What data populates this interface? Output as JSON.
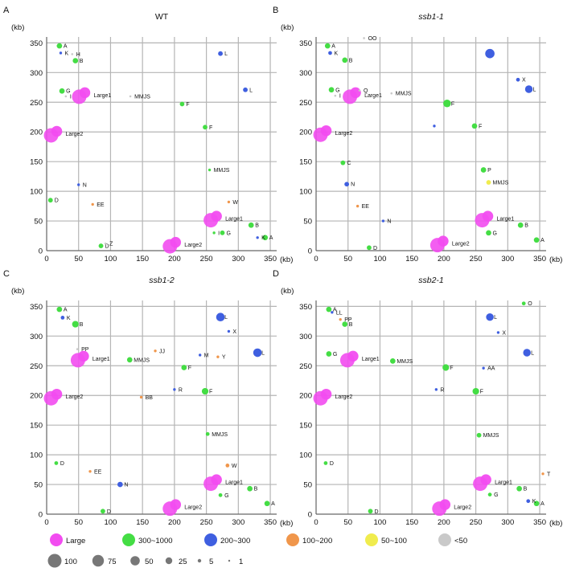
{
  "legend": {
    "color_items": [
      {
        "label": "Large",
        "color": "#f24cf0"
      },
      {
        "label": "300~1000",
        "color": "#44dd44"
      },
      {
        "label": "200~300",
        "color": "#3f5fe0"
      },
      {
        "label": "100~200",
        "color": "#f0964b"
      },
      {
        "label": "50~100",
        "color": "#f0ec4e"
      },
      {
        "label": "<50",
        "color": "#c9c9c9"
      }
    ],
    "size_items": [
      {
        "label": "100",
        "value": 100
      },
      {
        "label": "75",
        "value": 75
      },
      {
        "label": "50",
        "value": 50
      },
      {
        "label": "25",
        "value": 25
      },
      {
        "label": "5",
        "value": 5
      },
      {
        "label": "1",
        "value": 1
      }
    ],
    "size_color": "#777777"
  },
  "chart_data": [
    {
      "type": "scatter",
      "panel": "A",
      "title": "WT",
      "italic": false,
      "xlabel": "(kb)",
      "ylabel": "(kb)",
      "xlim": [
        0,
        360
      ],
      "ylim": [
        0,
        360
      ],
      "xticks": [
        0,
        50,
        100,
        150,
        200,
        250,
        300,
        350
      ],
      "yticks": [
        0,
        50,
        100,
        150,
        200,
        250,
        300,
        350
      ],
      "grid": true,
      "points": [
        {
          "x": 20,
          "y": 345,
          "cat": "300~1000",
          "size": 20,
          "label": "A"
        },
        {
          "x": 40,
          "y": 331,
          "cat": "<50",
          "size": 3,
          "label": "H"
        },
        {
          "x": 22,
          "y": 333,
          "cat": "200~300",
          "size": 5,
          "label": "K"
        },
        {
          "x": 45,
          "y": 320,
          "cat": "300~1000",
          "size": 20,
          "label": "B"
        },
        {
          "x": 272,
          "y": 332,
          "cat": "200~300",
          "size": 15,
          "label": "L"
        },
        {
          "x": 24,
          "y": 269,
          "cat": "300~1000",
          "size": 20,
          "label": "G"
        },
        {
          "x": 30,
          "y": 260,
          "cat": "<50",
          "size": 3,
          "label": "I"
        },
        {
          "x": 56,
          "y": 262,
          "cat": "Large",
          "size": 100,
          "label": "Large1"
        },
        {
          "x": 131,
          "y": 260,
          "cat": "<50",
          "size": 3,
          "label": "MMJS"
        },
        {
          "x": 311,
          "y": 271,
          "cat": "200~300",
          "size": 15,
          "label": "L"
        },
        {
          "x": 212,
          "y": 247,
          "cat": "300~1000",
          "size": 15,
          "label": "F"
        },
        {
          "x": 248,
          "y": 208,
          "cat": "300~1000",
          "size": 15,
          "label": "F"
        },
        {
          "x": 12,
          "y": 197,
          "cat": "Large",
          "size": 100,
          "label": "Large2"
        },
        {
          "x": 255,
          "y": 136,
          "cat": "300~1000",
          "size": 5,
          "label": "MMJS"
        },
        {
          "x": 50,
          "y": 111,
          "cat": "200~300",
          "size": 5,
          "label": "N"
        },
        {
          "x": 6,
          "y": 85,
          "cat": "300~1000",
          "size": 15,
          "label": "D"
        },
        {
          "x": 72,
          "y": 78,
          "cat": "100~200",
          "size": 5,
          "label": "EE"
        },
        {
          "x": 285,
          "y": 82,
          "cat": "100~200",
          "size": 5,
          "label": "W"
        },
        {
          "x": 262,
          "y": 54,
          "cat": "Large",
          "size": 100,
          "label": "Large1"
        },
        {
          "x": 320,
          "y": 43,
          "cat": "300~1000",
          "size": 20,
          "label": "B"
        },
        {
          "x": 262,
          "y": 30,
          "cat": "300~1000",
          "size": 5,
          "label": "I"
        },
        {
          "x": 275,
          "y": 30,
          "cat": "300~1000",
          "size": 15,
          "label": "G"
        },
        {
          "x": 342,
          "y": 22,
          "cat": "300~1000",
          "size": 20,
          "label": "A"
        },
        {
          "x": 198,
          "y": 10,
          "cat": "Large",
          "size": 100,
          "label": "Large2"
        },
        {
          "x": 85,
          "y": 8,
          "cat": "300~1000",
          "size": 15,
          "label": "D"
        },
        {
          "x": 92,
          "y": 12,
          "cat": "<50",
          "size": 3,
          "label": "Z"
        },
        {
          "x": 330,
          "y": 22,
          "cat": "200~300",
          "size": 5,
          "label": "K"
        }
      ]
    },
    {
      "type": "scatter",
      "panel": "B",
      "title": "ssb1-1",
      "italic": true,
      "xlabel": "(kb)",
      "ylabel": "(kb)",
      "xlim": [
        0,
        360
      ],
      "ylim": [
        0,
        360
      ],
      "xticks": [
        0,
        50,
        100,
        150,
        200,
        250,
        300,
        350
      ],
      "yticks": [
        0,
        50,
        100,
        150,
        200,
        250,
        300,
        350
      ],
      "grid": true,
      "points": [
        {
          "x": 18,
          "y": 345,
          "cat": "300~1000",
          "size": 20,
          "label": "A"
        },
        {
          "x": 75,
          "y": 358,
          "cat": "<50",
          "size": 3,
          "label": "OO"
        },
        {
          "x": 22,
          "y": 333,
          "cat": "200~300",
          "size": 10,
          "label": "K"
        },
        {
          "x": 45,
          "y": 321,
          "cat": "300~1000",
          "size": 20,
          "label": "B"
        },
        {
          "x": 272,
          "y": 332,
          "cat": "200~300",
          "size": 60,
          "label": ""
        },
        {
          "x": 316,
          "y": 288,
          "cat": "200~300",
          "size": 10,
          "label": "X"
        },
        {
          "x": 333,
          "y": 272,
          "cat": "200~300",
          "size": 40,
          "label": "L"
        },
        {
          "x": 24,
          "y": 271,
          "cat": "300~1000",
          "size": 20,
          "label": "G"
        },
        {
          "x": 30,
          "y": 261,
          "cat": "<50",
          "size": 3,
          "label": "I"
        },
        {
          "x": 58,
          "y": 262,
          "cat": "Large",
          "size": 100,
          "label": "Large1"
        },
        {
          "x": 68,
          "y": 270,
          "cat": "<50",
          "size": 3,
          "label": "Q"
        },
        {
          "x": 118,
          "y": 265,
          "cat": "<50",
          "size": 3,
          "label": "MMJS"
        },
        {
          "x": 205,
          "y": 248,
          "cat": "300~1000",
          "size": 40,
          "label": "F"
        },
        {
          "x": 248,
          "y": 210,
          "cat": "300~1000",
          "size": 20,
          "label": "F"
        },
        {
          "x": 185,
          "y": 210,
          "cat": "200~300",
          "size": 5,
          "label": ""
        },
        {
          "x": 12,
          "y": 198,
          "cat": "Large",
          "size": 100,
          "label": "Large2"
        },
        {
          "x": 42,
          "y": 148,
          "cat": "300~1000",
          "size": 15,
          "label": "C"
        },
        {
          "x": 262,
          "y": 136,
          "cat": "300~1000",
          "size": 20,
          "label": "P"
        },
        {
          "x": 270,
          "y": 115,
          "cat": "50~100",
          "size": 15,
          "label": "MMJS"
        },
        {
          "x": 48,
          "y": 112,
          "cat": "200~300",
          "size": 15,
          "label": "N"
        },
        {
          "x": 65,
          "y": 75,
          "cat": "100~200",
          "size": 5,
          "label": "EE"
        },
        {
          "x": 265,
          "y": 54,
          "cat": "Large",
          "size": 100,
          "label": "Large1"
        },
        {
          "x": 320,
          "y": 43,
          "cat": "300~1000",
          "size": 20,
          "label": "B"
        },
        {
          "x": 270,
          "y": 30,
          "cat": "300~1000",
          "size": 20,
          "label": "G"
        },
        {
          "x": 345,
          "y": 18,
          "cat": "300~1000",
          "size": 20,
          "label": "A"
        },
        {
          "x": 195,
          "y": 12,
          "cat": "Large",
          "size": 100,
          "label": "Large2"
        },
        {
          "x": 83,
          "y": 5,
          "cat": "300~1000",
          "size": 15,
          "label": "D"
        },
        {
          "x": 105,
          "y": 50,
          "cat": "200~300",
          "size": 5,
          "label": "N"
        }
      ]
    },
    {
      "type": "scatter",
      "panel": "C",
      "title": "ssb1-2",
      "italic": true,
      "xlabel": "(kb)",
      "ylabel": "(kb)",
      "xlim": [
        0,
        360
      ],
      "ylim": [
        0,
        360
      ],
      "xticks": [
        0,
        50,
        100,
        150,
        200,
        250,
        300,
        350
      ],
      "yticks": [
        0,
        50,
        100,
        150,
        200,
        250,
        300,
        350
      ],
      "grid": true,
      "points": [
        {
          "x": 20,
          "y": 345,
          "cat": "300~1000",
          "size": 20,
          "label": "A"
        },
        {
          "x": 25,
          "y": 331,
          "cat": "200~300",
          "size": 10,
          "label": "K"
        },
        {
          "x": 45,
          "y": 320,
          "cat": "300~1000",
          "size": 30,
          "label": "B"
        },
        {
          "x": 272,
          "y": 332,
          "cat": "200~300",
          "size": 50,
          "label": "L"
        },
        {
          "x": 285,
          "y": 308,
          "cat": "200~300",
          "size": 5,
          "label": "X"
        },
        {
          "x": 330,
          "y": 272,
          "cat": "200~300",
          "size": 50,
          "label": "L"
        },
        {
          "x": 48,
          "y": 278,
          "cat": "<50",
          "size": 3,
          "label": "PP"
        },
        {
          "x": 54,
          "y": 262,
          "cat": "Large",
          "size": 100,
          "label": "Large1"
        },
        {
          "x": 130,
          "y": 260,
          "cat": "300~1000",
          "size": 20,
          "label": "MMJS"
        },
        {
          "x": 170,
          "y": 275,
          "cat": "100~200",
          "size": 5,
          "label": "JJ"
        },
        {
          "x": 240,
          "y": 268,
          "cat": "200~300",
          "size": 5,
          "label": "M"
        },
        {
          "x": 268,
          "y": 265,
          "cat": "100~200",
          "size": 5,
          "label": "Y"
        },
        {
          "x": 215,
          "y": 247,
          "cat": "300~1000",
          "size": 20,
          "label": "F"
        },
        {
          "x": 248,
          "y": 207,
          "cat": "300~1000",
          "size": 30,
          "label": "F"
        },
        {
          "x": 200,
          "y": 210,
          "cat": "200~300",
          "size": 5,
          "label": "R"
        },
        {
          "x": 12,
          "y": 198,
          "cat": "Large",
          "size": 100,
          "label": "Large2"
        },
        {
          "x": 148,
          "y": 197,
          "cat": "100~200",
          "size": 5,
          "label": "BB"
        },
        {
          "x": 252,
          "y": 135,
          "cat": "300~1000",
          "size": 10,
          "label": "MMJS"
        },
        {
          "x": 15,
          "y": 86,
          "cat": "300~1000",
          "size": 10,
          "label": "D"
        },
        {
          "x": 283,
          "y": 82,
          "cat": "100~200",
          "size": 10,
          "label": "W"
        },
        {
          "x": 68,
          "y": 72,
          "cat": "100~200",
          "size": 5,
          "label": "EE"
        },
        {
          "x": 115,
          "y": 50,
          "cat": "200~300",
          "size": 20,
          "label": "N"
        },
        {
          "x": 262,
          "y": 54,
          "cat": "Large",
          "size": 100,
          "label": "Large1"
        },
        {
          "x": 318,
          "y": 43,
          "cat": "300~1000",
          "size": 20,
          "label": "B"
        },
        {
          "x": 272,
          "y": 32,
          "cat": "300~1000",
          "size": 10,
          "label": "G"
        },
        {
          "x": 345,
          "y": 18,
          "cat": "300~1000",
          "size": 20,
          "label": "A"
        },
        {
          "x": 198,
          "y": 12,
          "cat": "Large",
          "size": 100,
          "label": "Large2"
        },
        {
          "x": 88,
          "y": 5,
          "cat": "300~1000",
          "size": 15,
          "label": "D"
        }
      ]
    },
    {
      "type": "scatter",
      "panel": "D",
      "title": "ssb2-1",
      "italic": true,
      "xlabel": "(kb)",
      "ylabel": "(kb)",
      "xlim": [
        0,
        360
      ],
      "ylim": [
        0,
        360
      ],
      "xticks": [
        0,
        50,
        100,
        150,
        200,
        250,
        300,
        350
      ],
      "yticks": [
        0,
        50,
        100,
        150,
        200,
        250,
        300,
        350
      ],
      "grid": true,
      "points": [
        {
          "x": 20,
          "y": 345,
          "cat": "300~1000",
          "size": 20,
          "label": "A"
        },
        {
          "x": 25,
          "y": 340,
          "cat": "200~300",
          "size": 5,
          "label": "LL"
        },
        {
          "x": 38,
          "y": 328,
          "cat": "100~200",
          "size": 5,
          "label": "PP"
        },
        {
          "x": 45,
          "y": 320,
          "cat": "300~1000",
          "size": 20,
          "label": "B"
        },
        {
          "x": 272,
          "y": 332,
          "cat": "200~300",
          "size": 40,
          "label": "L"
        },
        {
          "x": 325,
          "y": 355,
          "cat": "300~1000",
          "size": 10,
          "label": "O"
        },
        {
          "x": 285,
          "y": 306,
          "cat": "200~300",
          "size": 5,
          "label": "X"
        },
        {
          "x": 330,
          "y": 272,
          "cat": "200~300",
          "size": 40,
          "label": "L"
        },
        {
          "x": 20,
          "y": 270,
          "cat": "300~1000",
          "size": 20,
          "label": "G"
        },
        {
          "x": 54,
          "y": 262,
          "cat": "Large",
          "size": 100,
          "label": "Large1"
        },
        {
          "x": 120,
          "y": 258,
          "cat": "300~1000",
          "size": 20,
          "label": "MMJS"
        },
        {
          "x": 203,
          "y": 247,
          "cat": "300~1000",
          "size": 30,
          "label": "F"
        },
        {
          "x": 250,
          "y": 207,
          "cat": "300~1000",
          "size": 30,
          "label": "F"
        },
        {
          "x": 262,
          "y": 246,
          "cat": "200~300",
          "size": 5,
          "label": "AA"
        },
        {
          "x": 12,
          "y": 198,
          "cat": "Large",
          "size": 100,
          "label": "Large2"
        },
        {
          "x": 188,
          "y": 210,
          "cat": "200~300",
          "size": 5,
          "label": "R"
        },
        {
          "x": 255,
          "y": 133,
          "cat": "300~1000",
          "size": 15,
          "label": "MMJS"
        },
        {
          "x": 15,
          "y": 86,
          "cat": "300~1000",
          "size": 10,
          "label": "D"
        },
        {
          "x": 262,
          "y": 54,
          "cat": "Large",
          "size": 100,
          "label": "Large1"
        },
        {
          "x": 318,
          "y": 43,
          "cat": "300~1000",
          "size": 20,
          "label": "B"
        },
        {
          "x": 272,
          "y": 33,
          "cat": "300~1000",
          "size": 10,
          "label": "G"
        },
        {
          "x": 345,
          "y": 18,
          "cat": "300~1000",
          "size": 20,
          "label": "A"
        },
        {
          "x": 332,
          "y": 22,
          "cat": "200~300",
          "size": 10,
          "label": "K"
        },
        {
          "x": 198,
          "y": 12,
          "cat": "Large",
          "size": 100,
          "label": "Large2"
        },
        {
          "x": 85,
          "y": 5,
          "cat": "300~1000",
          "size": 15,
          "label": "D"
        },
        {
          "x": 355,
          "y": 68,
          "cat": "100~200",
          "size": 5,
          "label": "T"
        }
      ]
    }
  ]
}
